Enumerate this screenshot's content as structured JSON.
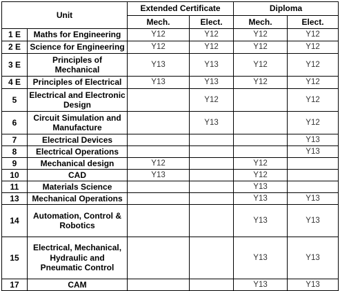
{
  "table": {
    "header": {
      "unit": "Unit",
      "extended_certificate": "Extended Certificate",
      "diploma": "Diploma",
      "sub": [
        "Mech.",
        "Elect.",
        "Mech.",
        "Elect."
      ]
    },
    "rows": [
      {
        "num": "1 E",
        "name": "Maths for Engineering",
        "cells": [
          "Y12",
          "Y12",
          "Y12",
          "Y12"
        ]
      },
      {
        "num": "2 E",
        "name": "Science for Engineering",
        "cells": [
          "Y12",
          "Y12",
          "Y12",
          "Y12"
        ]
      },
      {
        "num": "3 E",
        "name": "Principles of Mechanical",
        "cells": [
          "Y13",
          "Y13",
          "Y12",
          "Y12"
        ]
      },
      {
        "num": "4 E",
        "name": "Principles of Electrical",
        "cells": [
          "Y13",
          "Y13",
          "Y12",
          "Y12"
        ]
      },
      {
        "num": "5",
        "name": "Electrical and Electronic Design",
        "cells": [
          "",
          "Y12",
          "",
          "Y12"
        ]
      },
      {
        "num": "6",
        "name": "Circuit Simulation and Manufacture",
        "cells": [
          "",
          "Y13",
          "",
          "Y12"
        ]
      },
      {
        "num": "7",
        "name": "Electrical Devices",
        "cells": [
          "",
          "",
          "",
          "Y13"
        ]
      },
      {
        "num": "8",
        "name": "Electrical Operations",
        "cells": [
          "",
          "",
          "",
          "Y13"
        ]
      },
      {
        "num": "9",
        "name": "Mechanical design",
        "cells": [
          "Y12",
          "",
          "Y12",
          ""
        ]
      },
      {
        "num": "10",
        "name": "CAD",
        "cells": [
          "Y13",
          "",
          "Y12",
          ""
        ]
      },
      {
        "num": "11",
        "name": "Materials Science",
        "cells": [
          "",
          "",
          "Y13",
          ""
        ]
      },
      {
        "num": "13",
        "name": "Mechanical Operations",
        "cells": [
          "",
          "",
          "Y13",
          "Y13"
        ]
      },
      {
        "num": "14",
        "name": "Automation, Control & Robotics",
        "cells": [
          "",
          "",
          "Y13",
          "Y13"
        ]
      },
      {
        "num": "15",
        "name": "Electrical, Mechanical, Hydraulic and Pneumatic Control",
        "cells": [
          "",
          "",
          "Y13",
          "Y13"
        ]
      },
      {
        "num": "17",
        "name": "CAM",
        "cells": [
          "",
          "",
          "Y13",
          "Y13"
        ]
      }
    ]
  }
}
